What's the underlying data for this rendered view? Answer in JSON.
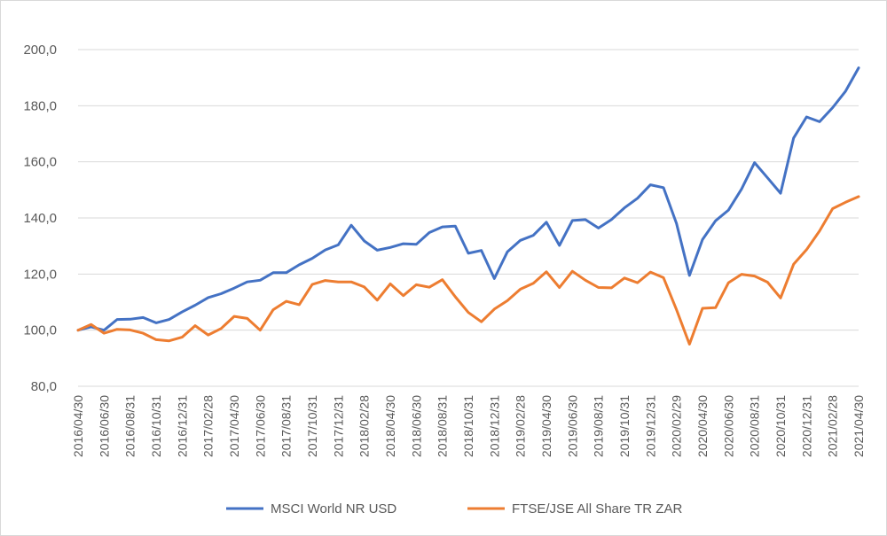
{
  "chart_data": {
    "type": "line",
    "title": "",
    "xlabel": "",
    "ylabel": "",
    "ylim": [
      80,
      200
    ],
    "y_ticks": [
      "80,0",
      "100,0",
      "120,0",
      "140,0",
      "160,0",
      "180,0",
      "200,0"
    ],
    "y_tick_values": [
      80,
      100,
      120,
      140,
      160,
      180,
      200
    ],
    "grid": "horizontal",
    "legend_position": "bottom",
    "x": [
      "2016/04/30",
      "2016/05/31",
      "2016/06/30",
      "2016/07/31",
      "2016/08/31",
      "2016/09/30",
      "2016/10/31",
      "2016/11/30",
      "2016/12/31",
      "2017/01/31",
      "2017/02/28",
      "2017/03/31",
      "2017/04/30",
      "2017/05/31",
      "2017/06/30",
      "2017/07/31",
      "2017/08/31",
      "2017/09/30",
      "2017/10/31",
      "2017/11/30",
      "2017/12/31",
      "2018/01/31",
      "2018/02/28",
      "2018/03/31",
      "2018/04/30",
      "2018/05/31",
      "2018/06/30",
      "2018/07/31",
      "2018/08/31",
      "2018/09/30",
      "2018/10/31",
      "2018/11/30",
      "2018/12/31",
      "2019/01/31",
      "2019/02/28",
      "2019/03/31",
      "2019/04/30",
      "2019/05/31",
      "2019/06/30",
      "2019/07/31",
      "2019/08/31",
      "2019/09/30",
      "2019/10/31",
      "2019/11/30",
      "2019/12/31",
      "2020/01/31",
      "2020/02/29",
      "2020/03/31",
      "2020/04/30",
      "2020/05/31",
      "2020/06/30",
      "2020/07/31",
      "2020/08/31",
      "2020/09/30",
      "2020/10/31",
      "2020/11/30",
      "2020/12/31",
      "2021/01/31",
      "2021/02/28",
      "2021/03/31",
      "2021/04/30"
    ],
    "x_tick_labels": [
      "2016/04/30",
      "2016/06/30",
      "2016/08/31",
      "2016/10/31",
      "2016/12/31",
      "2017/02/28",
      "2017/04/30",
      "2017/06/30",
      "2017/08/31",
      "2017/10/31",
      "2017/12/31",
      "2018/02/28",
      "2018/04/30",
      "2018/06/30",
      "2018/08/31",
      "2018/10/31",
      "2018/12/31",
      "2019/02/28",
      "2019/04/30",
      "2019/06/30",
      "2019/08/31",
      "2019/10/31",
      "2019/12/31",
      "2020/02/29",
      "2020/04/30",
      "2020/06/30",
      "2020/08/31",
      "2020/10/31",
      "2020/12/31",
      "2021/02/28",
      "2021/04/30"
    ],
    "series": [
      {
        "name": "MSCI World NR USD",
        "color": "#4472C4",
        "values": [
          100.0,
          101.2,
          100.0,
          103.8,
          103.9,
          104.5,
          102.6,
          103.8,
          106.5,
          108.9,
          111.6,
          113.0,
          115.0,
          117.2,
          117.8,
          120.5,
          120.5,
          123.3,
          125.6,
          128.6,
          130.4,
          137.4,
          131.8,
          128.5,
          129.5,
          130.8,
          130.6,
          134.8,
          136.8,
          137.1,
          127.4,
          128.4,
          118.4,
          127.9,
          132.0,
          133.8,
          138.5,
          130.2,
          139.1,
          139.4,
          136.4,
          139.4,
          143.6,
          147.0,
          151.8,
          150.8,
          138.0,
          119.5,
          132.3,
          139.0,
          142.8,
          150.3,
          159.7,
          154.3,
          148.8,
          168.5,
          176.0,
          174.3,
          179.3,
          185.2,
          193.5
        ]
      },
      {
        "name": "FTSE/JSE All Share TR ZAR",
        "color": "#ED7D31",
        "values": [
          100.0,
          102.0,
          98.9,
          100.3,
          100.1,
          98.9,
          96.6,
          96.2,
          97.5,
          101.6,
          98.3,
          100.6,
          104.9,
          104.2,
          100.0,
          107.3,
          110.3,
          109.1,
          116.3,
          117.7,
          117.2,
          117.2,
          115.4,
          110.7,
          116.5,
          112.3,
          116.2,
          115.3,
          118.0,
          111.9,
          106.3,
          103.0,
          107.5,
          110.5,
          114.6,
          116.7,
          120.8,
          115.2,
          121.0,
          117.8,
          115.2,
          115.1,
          118.6,
          116.9,
          120.7,
          118.7,
          107.3,
          95.0,
          107.8,
          108.0,
          116.9,
          119.9,
          119.3,
          117.1,
          111.5,
          123.5,
          128.7,
          135.4,
          143.3,
          145.6,
          147.6
        ]
      }
    ]
  }
}
